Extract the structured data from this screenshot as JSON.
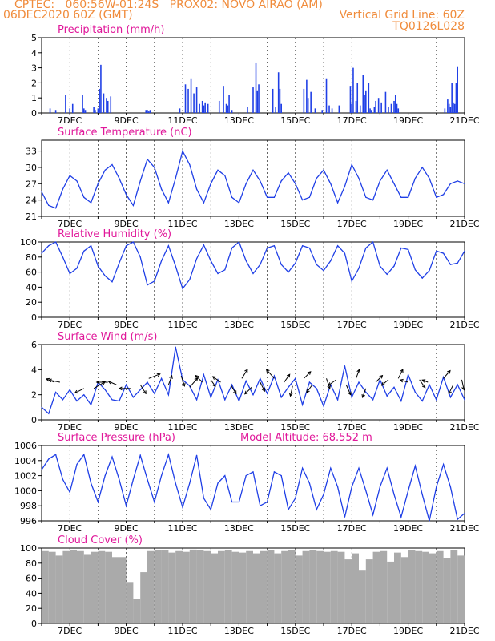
{
  "header": {
    "line1_left": "CPTEC:   060:56W-01:24S   PROX02: NOVO AIRAO (AM)",
    "line2_left": "06DEC2020 60Z (GMT)",
    "line2_right": "Vertical Grid Line: 60Z",
    "line3_right": "TQ0126L028"
  },
  "x_ticks": [
    "7DEC",
    "9DEC",
    "11DEC",
    "13DEC",
    "15DEC",
    "17DEC",
    "19DEC",
    "21DEC"
  ],
  "colors": {
    "header": "#f08c3c",
    "title": "#e0189a",
    "series": "#1f3fe6",
    "cloud": "#aaaaaa",
    "arrow": "#000000"
  },
  "chart_data": [
    {
      "type": "bar",
      "title": "Precipitation (mm/h)",
      "ylim": [
        0,
        5
      ],
      "yticks": [
        0,
        1,
        2,
        3,
        4,
        5
      ],
      "xlim": [
        6.0,
        21.0
      ],
      "x": [
        6.3,
        6.5,
        6.85,
        7.0,
        7.1,
        7.45,
        7.5,
        7.55,
        7.85,
        7.9,
        8.0,
        8.05,
        8.1,
        8.2,
        8.3,
        8.35,
        8.45,
        9.7,
        9.75,
        9.8,
        9.85,
        10.9,
        11.1,
        11.2,
        11.3,
        11.4,
        11.5,
        11.6,
        11.7,
        11.75,
        11.8,
        11.9,
        12.3,
        12.45,
        12.55,
        12.6,
        12.65,
        12.75,
        13.3,
        13.5,
        13.6,
        13.65,
        13.7,
        14.2,
        14.3,
        14.4,
        14.45,
        14.5,
        15.3,
        15.4,
        15.45,
        15.55,
        15.7,
        15.95,
        16.1,
        16.2,
        16.3,
        16.55,
        16.95,
        17.0,
        17.05,
        17.15,
        17.2,
        17.3,
        17.4,
        17.45,
        17.5,
        17.6,
        17.65,
        17.7,
        17.8,
        17.85,
        17.95,
        18.05,
        18.2,
        18.3,
        18.4,
        18.5,
        18.55,
        18.6,
        18.65,
        20.3,
        20.4,
        20.45,
        20.5,
        20.55,
        20.6,
        20.65,
        20.7,
        20.75
      ],
      "values": [
        0.3,
        0.2,
        1.2,
        0.3,
        0.6,
        1.2,
        0.3,
        0.2,
        0.4,
        0.2,
        0.3,
        1.6,
        3.2,
        1.3,
        1.0,
        0.8,
        1.1,
        0.2,
        0.2,
        0.1,
        0.2,
        0.3,
        1.9,
        1.6,
        2.3,
        1.3,
        1.7,
        0.6,
        0.8,
        0.5,
        0.7,
        0.6,
        0.8,
        1.8,
        0.6,
        0.5,
        1.2,
        0.2,
        0.4,
        1.7,
        3.3,
        1.5,
        1.9,
        1.6,
        0.4,
        2.7,
        1.6,
        0.6,
        1.6,
        2.2,
        1.0,
        1.4,
        0.3,
        0.2,
        2.3,
        0.5,
        0.3,
        0.5,
        1.8,
        0.6,
        3.0,
        0.8,
        2.0,
        0.5,
        2.5,
        1.2,
        1.5,
        2.0,
        0.3,
        0.2,
        0.4,
        0.8,
        1.0,
        0.7,
        1.4,
        0.4,
        0.6,
        0.8,
        1.2,
        0.6,
        0.3,
        0.3,
        0.9,
        0.6,
        0.4,
        2.0,
        0.7,
        0.6,
        2.0,
        3.1
      ]
    },
    {
      "type": "line",
      "title": "Surface Temperature (nC)",
      "ylim": [
        21,
        35
      ],
      "yticks": [
        21,
        24,
        27,
        30,
        33
      ],
      "xlim": [
        6.0,
        21.0
      ],
      "x": [
        6.0,
        6.25,
        6.5,
        6.75,
        7.0,
        7.25,
        7.5,
        7.75,
        8.0,
        8.25,
        8.5,
        8.75,
        9.0,
        9.25,
        9.5,
        9.75,
        10.0,
        10.25,
        10.5,
        10.75,
        11.0,
        11.25,
        11.5,
        11.75,
        12.0,
        12.25,
        12.5,
        12.75,
        13.0,
        13.25,
        13.5,
        13.75,
        14.0,
        14.25,
        14.5,
        14.75,
        15.0,
        15.25,
        15.5,
        15.75,
        16.0,
        16.25,
        16.5,
        16.75,
        17.0,
        17.25,
        17.5,
        17.75,
        18.0,
        18.25,
        18.5,
        18.75,
        19.0,
        19.25,
        19.5,
        19.75,
        20.0,
        20.25,
        20.5,
        20.75,
        21.0
      ],
      "values": [
        25.5,
        23.0,
        22.5,
        26.0,
        28.5,
        27.5,
        24.5,
        23.5,
        27.0,
        29.5,
        30.5,
        28.0,
        25.0,
        23.0,
        27.5,
        31.5,
        30.0,
        26.0,
        23.5,
        28.0,
        33.0,
        30.5,
        26.0,
        23.5,
        27.0,
        29.5,
        28.5,
        24.5,
        23.5,
        27.0,
        29.5,
        27.5,
        24.5,
        24.5,
        27.5,
        29.0,
        27.0,
        24.0,
        24.5,
        28.0,
        29.5,
        27.0,
        23.5,
        26.5,
        30.5,
        28.0,
        24.5,
        24.0,
        27.5,
        29.5,
        27.0,
        24.5,
        24.5,
        28.0,
        30.0,
        28.0,
        24.5,
        25.0,
        27.0,
        27.5,
        27.0
      ]
    },
    {
      "type": "line",
      "title": "Relative Humidity (%)",
      "ylim": [
        0,
        100
      ],
      "yticks": [
        0,
        20,
        40,
        60,
        80,
        100
      ],
      "xlim": [
        6.0,
        21.0
      ],
      "x": [
        6.0,
        6.25,
        6.5,
        6.75,
        7.0,
        7.25,
        7.5,
        7.75,
        8.0,
        8.25,
        8.5,
        8.75,
        9.0,
        9.25,
        9.5,
        9.75,
        10.0,
        10.25,
        10.5,
        10.75,
        11.0,
        11.25,
        11.5,
        11.75,
        12.0,
        12.25,
        12.5,
        12.75,
        13.0,
        13.25,
        13.5,
        13.75,
        14.0,
        14.25,
        14.5,
        14.75,
        15.0,
        15.25,
        15.5,
        15.75,
        16.0,
        16.25,
        16.5,
        16.75,
        17.0,
        17.25,
        17.5,
        17.75,
        18.0,
        18.25,
        18.5,
        18.75,
        19.0,
        19.25,
        19.5,
        19.75,
        20.0,
        20.25,
        20.5,
        20.75,
        21.0
      ],
      "values": [
        85,
        95,
        100,
        80,
        58,
        65,
        88,
        95,
        68,
        55,
        47,
        72,
        95,
        100,
        80,
        43,
        48,
        75,
        95,
        68,
        38,
        50,
        78,
        96,
        75,
        58,
        63,
        92,
        100,
        75,
        58,
        70,
        92,
        95,
        70,
        60,
        72,
        95,
        92,
        70,
        62,
        75,
        95,
        85,
        48,
        65,
        92,
        100,
        68,
        57,
        68,
        92,
        90,
        63,
        52,
        62,
        88,
        85,
        70,
        72,
        88
      ]
    },
    {
      "type": "line",
      "title": "Surface Wind (m/s)",
      "ylim": [
        0,
        6
      ],
      "yticks": [
        0,
        2,
        4,
        6
      ],
      "xlim": [
        6.0,
        21.0
      ],
      "x": [
        6.0,
        6.25,
        6.5,
        6.75,
        7.0,
        7.25,
        7.5,
        7.75,
        8.0,
        8.25,
        8.5,
        8.75,
        9.0,
        9.25,
        9.5,
        9.75,
        10.0,
        10.25,
        10.5,
        10.75,
        11.0,
        11.25,
        11.5,
        11.75,
        12.0,
        12.25,
        12.5,
        12.75,
        13.0,
        13.25,
        13.5,
        13.75,
        14.0,
        14.25,
        14.5,
        14.75,
        15.0,
        15.25,
        15.5,
        15.75,
        16.0,
        16.25,
        16.5,
        16.75,
        17.0,
        17.25,
        17.5,
        17.75,
        18.0,
        18.25,
        18.5,
        18.75,
        19.0,
        19.25,
        19.5,
        19.75,
        20.0,
        20.25,
        20.5,
        20.75,
        21.0
      ],
      "values": [
        1.0,
        0.5,
        2.2,
        1.6,
        2.4,
        1.5,
        2.0,
        1.2,
        3.0,
        2.4,
        1.6,
        1.5,
        2.8,
        1.8,
        2.4,
        3.0,
        2.1,
        3.3,
        2.0,
        5.8,
        3.2,
        2.7,
        1.6,
        3.6,
        1.8,
        3.2,
        1.6,
        2.8,
        1.5,
        3.1,
        2.0,
        3.3,
        2.1,
        3.5,
        1.8,
        2.6,
        3.3,
        1.2,
        3.0,
        2.5,
        1.1,
        2.8,
        1.6,
        4.3,
        1.8,
        3.0,
        2.2,
        1.6,
        3.2,
        1.9,
        2.6,
        1.5,
        3.6,
        2.2,
        1.5,
        2.8,
        1.6,
        3.4,
        1.8,
        2.8,
        1.6
      ],
      "arrows": {
        "x": [
          6.45,
          6.65,
          7.5,
          7.85,
          8.35,
          8.65,
          9.15,
          9.5,
          9.8,
          10.5,
          10.95,
          11.25,
          11.7,
          12.0,
          12.35,
          12.7,
          13.1,
          13.45,
          13.75,
          14.25,
          14.6,
          14.9,
          15.3,
          15.6,
          16.1,
          16.45,
          16.8,
          17.15,
          17.5,
          17.85,
          18.3,
          18.65,
          19.0,
          19.4,
          19.7,
          20.25,
          20.6,
          20.9
        ],
        "y": [
          3.0,
          3.0,
          2.5,
          2.5,
          3.0,
          2.8,
          2.5,
          2.8,
          3.3,
          2.8,
          3.5,
          2.6,
          3.0,
          3.2,
          3.0,
          2.8,
          3.3,
          2.6,
          3.0,
          3.3,
          3.0,
          2.7,
          3.3,
          2.8,
          3.3,
          3.2,
          2.8,
          3.3,
          2.5,
          3.0,
          3.2,
          3.3,
          3.0,
          3.2,
          3.0,
          3.3,
          2.8,
          3.2
        ],
        "u": [
          -0.7,
          -1.0,
          -0.8,
          1.0,
          -1.0,
          -0.7,
          -1.0,
          0.5,
          1.0,
          0.3,
          0.3,
          0.7,
          -0.6,
          0.4,
          -0.7,
          0.5,
          0.5,
          -0.6,
          0.4,
          -0.7,
          0.5,
          -0.2,
          0.6,
          -0.5,
          0.3,
          -0.7,
          0.4,
          0.3,
          -0.3,
          0.6,
          -0.6,
          0.4,
          -0.7,
          0.5,
          -0.5,
          0.6,
          -0.4,
          0.2
        ],
        "v": [
          0.3,
          0.2,
          -0.4,
          0.6,
          0.0,
          0.3,
          0.0,
          -0.8,
          0.4,
          0.8,
          -0.9,
          0.8,
          0.6,
          -0.6,
          0.5,
          -0.8,
          0.8,
          -0.6,
          -0.8,
          0.8,
          0.7,
          -0.9,
          0.6,
          -0.7,
          -0.9,
          -0.5,
          -0.9,
          0.8,
          -0.8,
          0.6,
          -0.5,
          0.8,
          0.2,
          -0.7,
          0.2,
          0.7,
          -0.8,
          -0.9
        ]
      }
    },
    {
      "type": "line",
      "title": "Surface Pressure (hPa)",
      "annotation": "Model Altitude: 68.552 m",
      "ylim": [
        996,
        1006
      ],
      "yticks": [
        996,
        998,
        1000,
        1002,
        1004,
        1006
      ],
      "xlim": [
        6.0,
        21.0
      ],
      "x": [
        6.0,
        6.25,
        6.5,
        6.75,
        7.0,
        7.25,
        7.5,
        7.75,
        8.0,
        8.25,
        8.5,
        8.75,
        9.0,
        9.25,
        9.5,
        9.75,
        10.0,
        10.25,
        10.5,
        10.75,
        11.0,
        11.25,
        11.5,
        11.75,
        12.0,
        12.25,
        12.5,
        12.75,
        13.0,
        13.25,
        13.5,
        13.75,
        14.0,
        14.25,
        14.5,
        14.75,
        15.0,
        15.25,
        15.5,
        15.75,
        16.0,
        16.25,
        16.5,
        16.75,
        17.0,
        17.25,
        17.5,
        17.75,
        18.0,
        18.25,
        18.5,
        18.75,
        19.0,
        19.25,
        19.5,
        19.75,
        20.0,
        20.25,
        20.5,
        20.75,
        21.0
      ],
      "values": [
        1002.8,
        1004.2,
        1004.8,
        1001.5,
        999.8,
        1003.5,
        1004.8,
        1001.0,
        998.5,
        1002.0,
        1004.5,
        1001.5,
        998.0,
        1001.5,
        1004.7,
        1001.5,
        998.5,
        1002.0,
        1004.8,
        1001.0,
        997.8,
        1001.0,
        1004.7,
        999.0,
        997.5,
        1001.0,
        1002.0,
        998.5,
        998.5,
        1002.0,
        1002.5,
        998.0,
        998.5,
        1002.5,
        1002.0,
        997.5,
        999.0,
        1003.0,
        1001.0,
        997.5,
        999.5,
        1003.0,
        1000.5,
        996.5,
        1000.5,
        1003.0,
        1000.0,
        996.8,
        1000.5,
        1003.0,
        999.5,
        996.5,
        1000.0,
        1003.3,
        999.5,
        996.0,
        1000.5,
        1003.5,
        1000.5,
        996.2,
        997.0
      ]
    },
    {
      "type": "bar",
      "title": "Cloud Cover (%)",
      "ylim": [
        0,
        100
      ],
      "yticks": [
        0,
        20,
        40,
        60,
        80,
        100
      ],
      "xlim": [
        6.0,
        21.0
      ],
      "x": [
        6.0,
        6.25,
        6.5,
        6.75,
        7.0,
        7.25,
        7.5,
        7.75,
        8.0,
        8.25,
        8.5,
        8.75,
        9.0,
        9.25,
        9.5,
        9.75,
        10.0,
        10.25,
        10.5,
        10.75,
        11.0,
        11.25,
        11.5,
        11.75,
        12.0,
        12.25,
        12.5,
        12.75,
        13.0,
        13.25,
        13.5,
        13.75,
        14.0,
        14.25,
        14.5,
        14.75,
        15.0,
        15.25,
        15.5,
        15.75,
        16.0,
        16.25,
        16.5,
        16.75,
        17.0,
        17.25,
        17.5,
        17.75,
        18.0,
        18.25,
        18.5,
        18.75,
        19.0,
        19.25,
        19.5,
        19.75,
        20.0,
        20.25,
        20.5,
        20.75
      ],
      "values": [
        96,
        95,
        90,
        96,
        97,
        96,
        91,
        95,
        96,
        95,
        88,
        88,
        55,
        32,
        68,
        96,
        97,
        97,
        94,
        96,
        95,
        98,
        97,
        96,
        93,
        96,
        97,
        95,
        94,
        96,
        93,
        96,
        97,
        93,
        96,
        97,
        90,
        96,
        97,
        96,
        95,
        96,
        95,
        85,
        93,
        70,
        85,
        95,
        96,
        82,
        94,
        88,
        97,
        96,
        95,
        93,
        96,
        87,
        97,
        90
      ]
    }
  ]
}
